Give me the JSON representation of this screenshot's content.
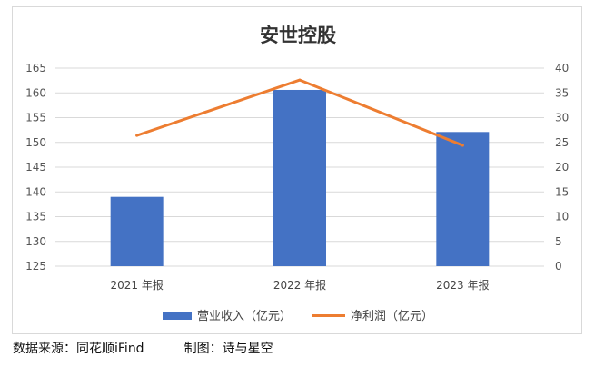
{
  "chart_data": {
    "type": "bar+line",
    "title": "安世控股",
    "categories": [
      "2021 年报",
      "2022 年报",
      "2023 年报"
    ],
    "series": [
      {
        "name": "营业收入（亿元）",
        "type": "bar",
        "axis": "left",
        "color": "#4472C4",
        "values": [
          139.0,
          160.6,
          152.1
        ]
      },
      {
        "name": "净利润（亿元）",
        "type": "line",
        "axis": "right",
        "color": "#ED7D31",
        "values": [
          26.4,
          37.6,
          24.4
        ]
      }
    ],
    "y_left": {
      "range": [
        125,
        165
      ],
      "ticks": [
        125,
        130,
        135,
        140,
        145,
        150,
        155,
        160,
        165
      ]
    },
    "y_right": {
      "range": [
        0,
        40
      ],
      "ticks": [
        0,
        5,
        10,
        15,
        20,
        25,
        30,
        35,
        40
      ]
    },
    "grid": true,
    "legend_position": "bottom"
  },
  "footer": {
    "source": "数据来源：同花顺iFind",
    "credit": "制图：诗与星空"
  }
}
